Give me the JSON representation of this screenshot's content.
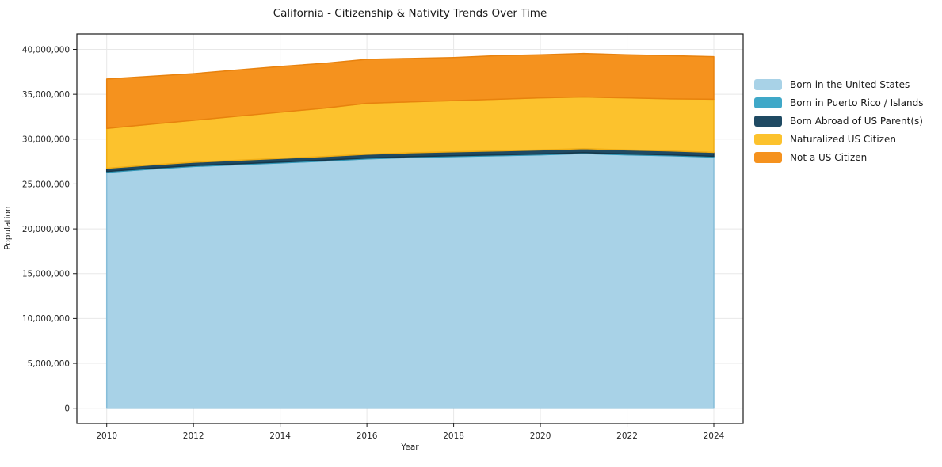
{
  "title": "California - Citizenship & Nativity Trends Over Time",
  "chart": {
    "xlabel": "Year",
    "ylabel": "Population",
    "x_ticks": [
      {
        "value": 2010,
        "label": "2010"
      },
      {
        "value": 2012,
        "label": "2012"
      },
      {
        "value": 2014,
        "label": "2014"
      },
      {
        "value": 2016,
        "label": "2016"
      },
      {
        "value": 2018,
        "label": "2018"
      },
      {
        "value": 2020,
        "label": "2020"
      },
      {
        "value": 2022,
        "label": "2022"
      },
      {
        "value": 2024,
        "label": "2024"
      }
    ],
    "y_ticks": [
      {
        "value": 0,
        "label": "0"
      },
      {
        "value": 5000000,
        "label": "5,000,000"
      },
      {
        "value": 10000000,
        "label": "10,000,000"
      },
      {
        "value": 15000000,
        "label": "15,000,000"
      },
      {
        "value": 20000000,
        "label": "20,000,000"
      },
      {
        "value": 25000000,
        "label": "25,000,000"
      },
      {
        "value": 30000000,
        "label": "30,000,000"
      },
      {
        "value": 35000000,
        "label": "35,000,000"
      },
      {
        "value": 40000000,
        "label": "40,000,000"
      }
    ]
  },
  "legend": {
    "items": [
      {
        "label": "Born in the United States",
        "color": "#a8d2e7"
      },
      {
        "label": "Born in Puerto Rico / Islands",
        "color": "#3fa8c8"
      },
      {
        "label": "Born Abroad of US Parent(s)",
        "color": "#1f4a63"
      },
      {
        "label": "Naturalized US Citizen",
        "color": "#fcc22d"
      },
      {
        "label": "Not a US Citizen",
        "color": "#f5921e"
      }
    ]
  },
  "chart_data": {
    "type": "area",
    "stacked": true,
    "title": "California - Citizenship & Nativity Trends Over Time",
    "xlabel": "Year",
    "ylabel": "Population",
    "x": [
      2010,
      2011,
      2012,
      2013,
      2014,
      2015,
      2016,
      2017,
      2018,
      2019,
      2020,
      2021,
      2022,
      2023,
      2024
    ],
    "xlim": [
      2009.3,
      2024.7
    ],
    "ylim": [
      0,
      40000000
    ],
    "grid": true,
    "legend_position": "right-outside",
    "series": [
      {
        "name": "Born in the United States",
        "color": "#a8d2e7",
        "edge_color": "#86bdd9",
        "values": [
          26300000,
          26650000,
          26950000,
          27150000,
          27350000,
          27550000,
          27800000,
          27950000,
          28050000,
          28150000,
          28250000,
          28400000,
          28250000,
          28150000,
          28000000
        ]
      },
      {
        "name": "Born in Puerto Rico / Islands",
        "color": "#3fa8c8",
        "edge_color": "#2f94b4",
        "values": [
          100000,
          100000,
          100000,
          100000,
          100000,
          100000,
          100000,
          100000,
          100000,
          100000,
          100000,
          100000,
          100000,
          100000,
          100000
        ]
      },
      {
        "name": "Born Abroad of US Parent(s)",
        "color": "#1f4a63",
        "edge_color": "#16374a",
        "values": [
          350000,
          360000,
          370000,
          390000,
          400000,
          410000,
          420000,
          430000,
          440000,
          440000,
          450000,
          450000,
          450000,
          440000,
          430000
        ]
      },
      {
        "name": "Naturalized US Citizen",
        "color": "#fcc22d",
        "edge_color": "#f0ad14",
        "values": [
          4450000,
          4550000,
          4680000,
          4910000,
          5150000,
          5390000,
          5680000,
          5670000,
          5710000,
          5760000,
          5800000,
          5750000,
          5800000,
          5810000,
          5920000
        ]
      },
      {
        "name": "Not a US Citizen",
        "color": "#f5921e",
        "edge_color": "#e8820e",
        "values": [
          5500000,
          5340000,
          5200000,
          5150000,
          5100000,
          5000000,
          4900000,
          4850000,
          4800000,
          4850000,
          4800000,
          4850000,
          4800000,
          4800000,
          4750000
        ]
      }
    ]
  }
}
